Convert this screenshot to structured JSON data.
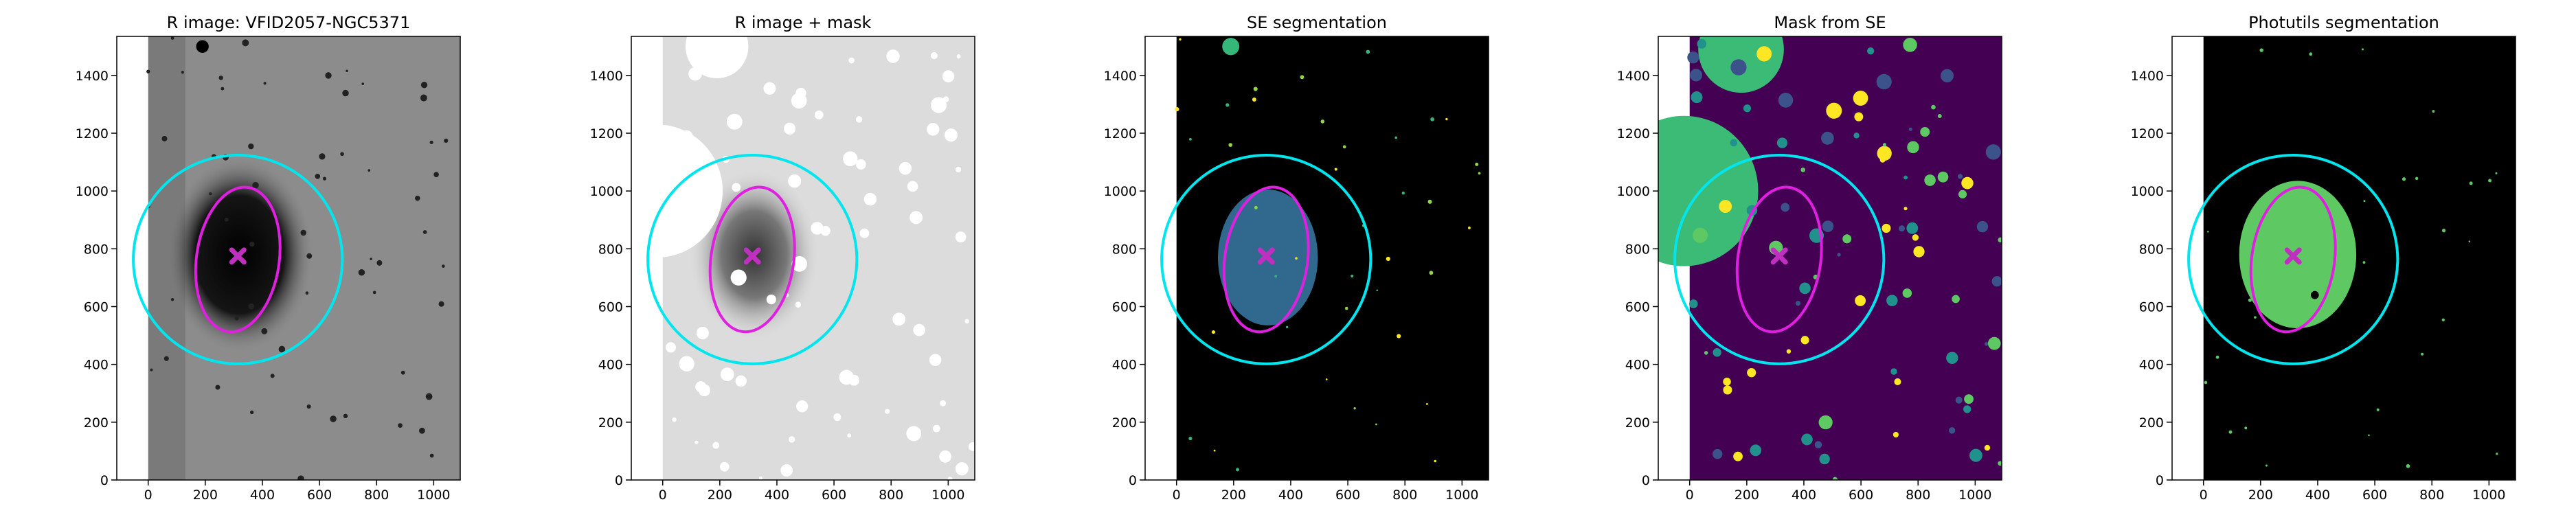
{
  "chart_data": [
    {
      "type": "image",
      "title": "R image: VFID2057-NGC5371",
      "xlim": [
        -110,
        1093
      ],
      "ylim": [
        0,
        1535
      ],
      "xticks": [
        0,
        200,
        400,
        600,
        800,
        1000
      ],
      "yticks": [
        0,
        200,
        400,
        600,
        800,
        1000,
        1200,
        1400
      ],
      "ellipses": [
        {
          "cx": 314,
          "cy": 763,
          "rx": 366,
          "ry": 361,
          "angle": 10,
          "color": "#00e5ee"
        },
        {
          "cx": 314,
          "cy": 763,
          "rx": 145,
          "ry": 252,
          "angle": 8,
          "color": "#e020e0"
        }
      ],
      "marker": {
        "x": 314,
        "y": 775,
        "color": "#c030c0"
      }
    },
    {
      "type": "image",
      "title": "R image + mask",
      "xlim": [
        -110,
        1093
      ],
      "ylim": [
        0,
        1535
      ],
      "xticks": [
        0,
        200,
        400,
        600,
        800,
        1000
      ],
      "yticks": [
        0,
        200,
        400,
        600,
        800,
        1000,
        1200,
        1400
      ],
      "ellipses": [
        {
          "cx": 314,
          "cy": 763,
          "rx": 366,
          "ry": 361,
          "angle": 10,
          "color": "#00e5ee"
        },
        {
          "cx": 314,
          "cy": 763,
          "rx": 145,
          "ry": 252,
          "angle": 8,
          "color": "#e020e0"
        }
      ],
      "marker": {
        "x": 314,
        "y": 775,
        "color": "#c030c0"
      }
    },
    {
      "type": "image",
      "title": "SE segmentation",
      "xlim": [
        -110,
        1093
      ],
      "ylim": [
        0,
        1535
      ],
      "xticks": [
        0,
        200,
        400,
        600,
        800,
        1000
      ],
      "yticks": [
        0,
        200,
        400,
        600,
        800,
        1000,
        1200,
        1400
      ],
      "ellipses": [
        {
          "cx": 314,
          "cy": 763,
          "rx": 366,
          "ry": 361,
          "angle": 10,
          "color": "#00e5ee"
        },
        {
          "cx": 314,
          "cy": 763,
          "rx": 145,
          "ry": 252,
          "angle": 8,
          "color": "#e020e0"
        }
      ],
      "marker": {
        "x": 314,
        "y": 775,
        "color": "#c030c0"
      }
    },
    {
      "type": "image",
      "title": "Mask from SE",
      "xlim": [
        -110,
        1093
      ],
      "ylim": [
        0,
        1535
      ],
      "xticks": [
        0,
        200,
        400,
        600,
        800,
        1000
      ],
      "yticks": [
        0,
        200,
        400,
        600,
        800,
        1000,
        1200,
        1400
      ],
      "ellipses": [
        {
          "cx": 314,
          "cy": 763,
          "rx": 366,
          "ry": 361,
          "angle": 10,
          "color": "#00e5ee"
        },
        {
          "cx": 314,
          "cy": 763,
          "rx": 145,
          "ry": 252,
          "angle": 8,
          "color": "#e020e0"
        }
      ],
      "marker": {
        "x": 314,
        "y": 775,
        "color": "#c030c0"
      }
    },
    {
      "type": "image",
      "title": "Photutils segmentation",
      "xlim": [
        -110,
        1093
      ],
      "ylim": [
        0,
        1535
      ],
      "xticks": [
        0,
        200,
        400,
        600,
        800,
        1000
      ],
      "yticks": [
        0,
        200,
        400,
        600,
        800,
        1000,
        1200,
        1400
      ],
      "ellipses": [
        {
          "cx": 314,
          "cy": 763,
          "rx": 366,
          "ry": 361,
          "angle": 10,
          "color": "#00e5ee"
        },
        {
          "cx": 314,
          "cy": 763,
          "rx": 145,
          "ry": 252,
          "angle": 8,
          "color": "#e020e0"
        }
      ],
      "marker": {
        "x": 314,
        "y": 775,
        "color": "#c030c0"
      }
    }
  ]
}
